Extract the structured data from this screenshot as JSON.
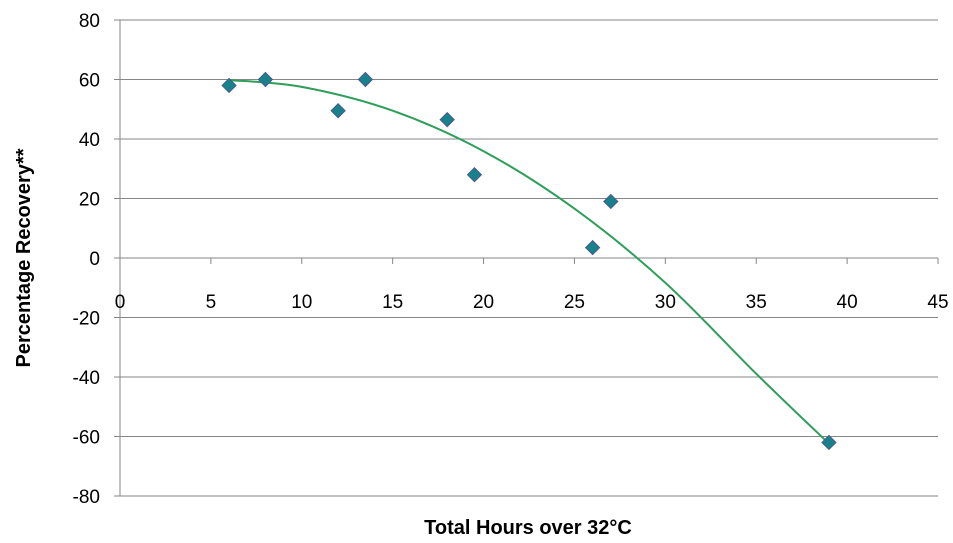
{
  "chart_data": {
    "type": "scatter",
    "title": "",
    "xlabel": "Total Hours over 32°C",
    "ylabel": "Percentage  Recovery**",
    "xlim": [
      0,
      45
    ],
    "ylim": [
      -80,
      80
    ],
    "x_ticks": [
      0,
      5,
      10,
      15,
      20,
      25,
      30,
      35,
      40,
      45
    ],
    "y_ticks": [
      80,
      60,
      40,
      20,
      0,
      -20,
      -40,
      -60,
      -80
    ],
    "x_tick_labels": [
      "0",
      "5",
      "10",
      "15",
      "20",
      "25",
      "30",
      "35",
      "40",
      "45"
    ],
    "y_tick_labels": [
      "80",
      "60",
      "40",
      "20",
      "0",
      "-20",
      "-40",
      "-60",
      "-80"
    ],
    "grid": "horizontal",
    "legend": "none",
    "points": [
      {
        "x": 6,
        "y": 58
      },
      {
        "x": 8,
        "y": 60
      },
      {
        "x": 12,
        "y": 49.5
      },
      {
        "x": 13.5,
        "y": 60
      },
      {
        "x": 18,
        "y": 46.5
      },
      {
        "x": 19.5,
        "y": 28
      },
      {
        "x": 26,
        "y": 3.5
      },
      {
        "x": 27,
        "y": 19
      },
      {
        "x": 39,
        "y": -62
      }
    ],
    "trendline": {
      "type": "polynomial-2",
      "x_range": [
        6,
        39
      ],
      "points": [
        {
          "x": 6,
          "y": 59.8
        },
        {
          "x": 10,
          "y": 57.5
        },
        {
          "x": 15,
          "y": 49.5
        },
        {
          "x": 20,
          "y": 35.9
        },
        {
          "x": 25,
          "y": 16.6
        },
        {
          "x": 30,
          "y": -8.3
        },
        {
          "x": 35,
          "y": -38.9
        },
        {
          "x": 39,
          "y": -62.4
        }
      ]
    },
    "colors": {
      "marker_fill": "#17828C",
      "marker_stroke": "#4A5A8A",
      "trendline": "#2E9E5A",
      "gridline": "#868686",
      "axis": "#868686"
    }
  }
}
